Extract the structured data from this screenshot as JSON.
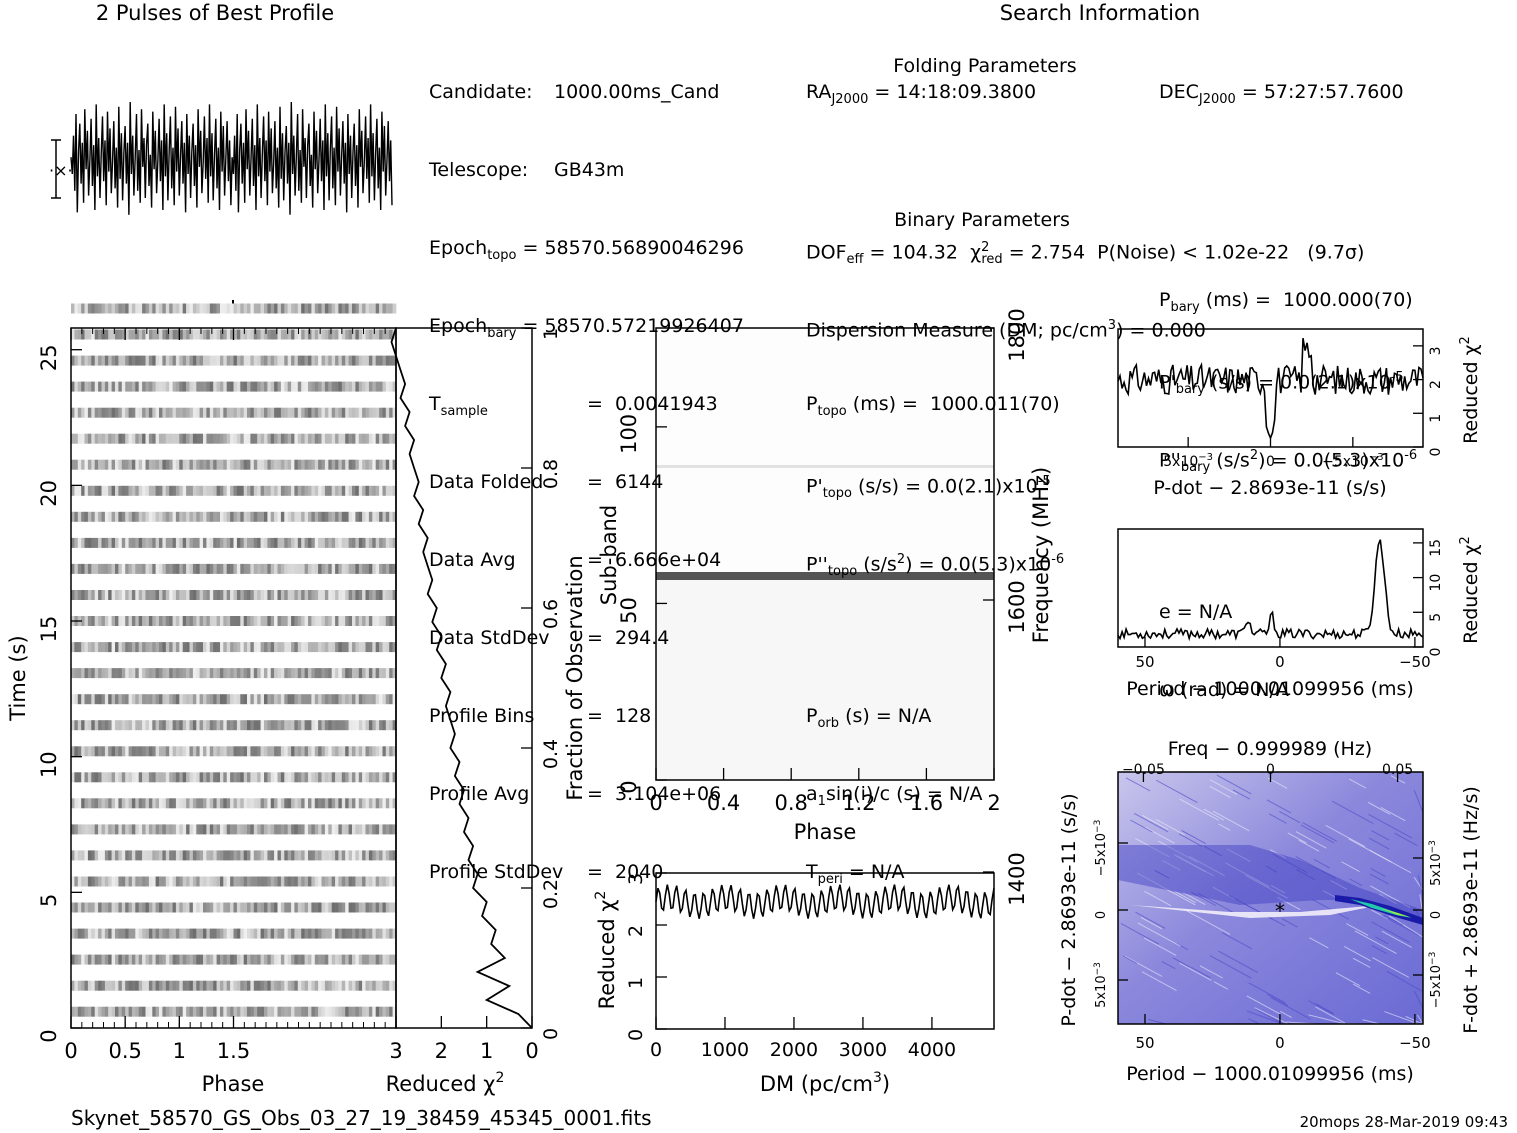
{
  "titles": {
    "profile": "2 Pulses of Best Profile",
    "search": "Search Information",
    "folding": "Folding Parameters",
    "binary": "Binary Parameters"
  },
  "info_left": [
    {
      "label": "Candidate:",
      "value": "1000.00ms_Cand"
    },
    {
      "label": "Telescope:",
      "value": "GB43m"
    },
    {
      "label": "Epoch",
      "sub": "topo",
      "value": "= 58570.5689004629 6"
    },
    {
      "label": "Epoch",
      "sub": "bary",
      "value": "= 58570.57219926407"
    },
    {
      "label": "T",
      "sub": "sample",
      "value": "=  0.0041943"
    },
    {
      "label": "Data Folded",
      "value": "=  6144"
    },
    {
      "label": "Data Avg",
      "value": "=  6.666e+04"
    },
    {
      "label": "Data StdDev",
      "value": "=  294.4"
    },
    {
      "label": "Profile Bins",
      "value": "=  128"
    },
    {
      "label": "Profile Avg",
      "value": "=  3.104e+06"
    },
    {
      "label": "Profile StdDev",
      "value": "=  2040"
    }
  ],
  "info_search": {
    "ra_label": "RA",
    "ra_sub": "J2000",
    "ra_value": "= 14:18:09.3800",
    "dec_label": "DEC",
    "dec_sub": "J2000",
    "dec_value": "= 57:27:57.7600",
    "dof_label": "DOF",
    "dof_sub": "eff",
    "dof_value": "= 104.32",
    "chi_label": "χ",
    "chi_sup": "2",
    "chi_sub": "red",
    "chi_value": "= 2.754",
    "pnoise": "P(Noise) < 1.02e-22   (9.7σ)",
    "dm": "Dispersion Measure (DM; pc/cm",
    "dm_sup": "3",
    "dm_end": ") = 0.000",
    "ptopo": "(ms) =  1000.011(70)",
    "pbary": "(ms) =  1000.000(70)",
    "pdtopo": "(s/s) = 0.0(2.1)x10",
    "pdtopo_exp": "-5",
    "pdbary": "(s/s) = 0.0(2.1)x10",
    "pdbary_exp": "-5",
    "pddtopo": "(s/s",
    "pddtopo_end": ") = 0.0(5.3)x10",
    "pddtopo_exp": "-6",
    "pddbary": "(s/s",
    "pddbary_end": ") = 0.0(5.3)x10",
    "pddbary_exp": "-6",
    "porb": "(s) = N/A",
    "e": "e = N/A",
    "asini": "sin(i)/c (s) = N/A",
    "omega": "ω (rad) = N/A",
    "tperi": "= N/A"
  },
  "axes": {
    "time_label": "Time (s)",
    "phase_label": "Phase",
    "redchi_label": "Reduced χ",
    "frac_label": "Fraction of Observation",
    "subband_label": "Sub-band",
    "freq_label": "Frequency (MHz)",
    "dm_label": "DM (pc/cm",
    "dm_label_sup": "3",
    "dm_label_end": ")",
    "pdot_label": "P-dot − 2.8693e-11 (s/s)",
    "period_label": "Period − 1000.01099956 (ms)",
    "freq_top_label": "Freq − 0.999989 (Hz)",
    "pdot_left_label": "P-dot − 2.8693e-11 (s/s)",
    "fdot_right_label": "F-dot + 2.8693e-11 (Hz/s)",
    "chi_sup": "2"
  },
  "footer": {
    "filename": "Skynet_58570_GS_Obs_03_27_19_38459_45345_0001.fits",
    "stamp": "20mops 28-Mar-2019 09:43"
  },
  "chart_data": [
    {
      "type": "line",
      "name": "profile",
      "title": "2 Pulses of Best Profile",
      "x_range": [
        0,
        2
      ],
      "bins": 128,
      "values": [
        0.52,
        0.45,
        0.61,
        0.38,
        0.7,
        0.29,
        0.55,
        0.66,
        0.41,
        0.58,
        0.33,
        0.72,
        0.47,
        0.63,
        0.36,
        0.51,
        0.68,
        0.4,
        0.57,
        0.3,
        0.74,
        0.44,
        0.6,
        0.35,
        0.53,
        0.69,
        0.42,
        0.59,
        0.32,
        0.71,
        0.46,
        0.64,
        0.37,
        0.5,
        0.67,
        0.39,
        0.56,
        0.31,
        0.73,
        0.43,
        0.62,
        0.34,
        0.54,
        0.65,
        0.41,
        0.58,
        0.28,
        0.75,
        0.45,
        0.61,
        0.36,
        0.52,
        0.7,
        0.38,
        0.55,
        0.33,
        0.72,
        0.48,
        0.6,
        0.35,
        0.57,
        0.66,
        0.4,
        0.53,
        0.31,
        0.71,
        0.47,
        0.63,
        0.37,
        0.51,
        0.68,
        0.42,
        0.59,
        0.3,
        0.74,
        0.44,
        0.62,
        0.34,
        0.55,
        0.69,
        0.39,
        0.56,
        0.32,
        0.73,
        0.46,
        0.64,
        0.36,
        0.52,
        0.67,
        0.41,
        0.58,
        0.29,
        0.7,
        0.45,
        0.61,
        0.35,
        0.54,
        0.66,
        0.4,
        0.57,
        0.31,
        0.72,
        0.48,
        0.63,
        0.37,
        0.5,
        0.69,
        0.43,
        0.6,
        0.33,
        0.74,
        0.44,
        0.62,
        0.34,
        0.53,
        0.68,
        0.39,
        0.56,
        0.3,
        0.71,
        0.46,
        0.65,
        0.36,
        0.51,
        0.67,
        0.42,
        0.59,
        0.32
      ]
    },
    {
      "type": "heatmap",
      "name": "time-phase",
      "xlabel": "Phase",
      "ylabel": "Time (s)",
      "xlim": [
        0,
        3
      ],
      "ylim": [
        0,
        25.8
      ]
    },
    {
      "type": "line",
      "name": "time-chi",
      "xlabel": "Reduced χ2",
      "ylabel": "Fraction of Observation",
      "xlim": [
        3,
        0
      ],
      "ylim": [
        0,
        1
      ],
      "frac": [
        0.0,
        0.02,
        0.04,
        0.06,
        0.08,
        0.1,
        0.12,
        0.14,
        0.16,
        0.18,
        0.2,
        0.22,
        0.24,
        0.26,
        0.28,
        0.3,
        0.32,
        0.34,
        0.36,
        0.38,
        0.4,
        0.42,
        0.44,
        0.46,
        0.48,
        0.5,
        0.52,
        0.54,
        0.56,
        0.58,
        0.6,
        0.62,
        0.64,
        0.66,
        0.68,
        0.7,
        0.72,
        0.74,
        0.76,
        0.78,
        0.8,
        0.82,
        0.84,
        0.86,
        0.88,
        0.9,
        0.92,
        0.94,
        0.96,
        0.98,
        1.0
      ],
      "chi": [
        0.0,
        0.3,
        1.0,
        0.5,
        1.2,
        0.6,
        0.9,
        0.8,
        1.1,
        1.0,
        1.3,
        1.2,
        1.4,
        1.3,
        1.5,
        1.4,
        1.6,
        1.5,
        1.7,
        1.6,
        1.8,
        1.7,
        1.8,
        1.9,
        1.8,
        2.0,
        1.9,
        2.1,
        2.0,
        2.2,
        2.1,
        2.3,
        2.2,
        2.3,
        2.4,
        2.3,
        2.5,
        2.4,
        2.6,
        2.5,
        2.6,
        2.7,
        2.6,
        2.8,
        2.7,
        2.9,
        2.8,
        2.9,
        3.0,
        3.1,
        3.0
      ]
    },
    {
      "type": "heatmap",
      "name": "subband-phase",
      "xlabel": "Phase",
      "ylabel": "Sub-band",
      "xlim": [
        0,
        2
      ],
      "ylim": [
        0,
        128
      ],
      "y2label": "Frequency (MHz)",
      "y2ticks": [
        1400,
        1600,
        1800
      ]
    },
    {
      "type": "line",
      "name": "dm-chi",
      "xlabel": "DM (pc/cm3)",
      "ylabel": "Reduced χ2",
      "xlim": [
        0,
        4900
      ],
      "ylim": [
        0,
        3
      ],
      "mean": 2.45,
      "amplitude": 0.25
    },
    {
      "type": "line",
      "name": "pdot-chi",
      "xlabel": "P-dot − 2.8693e-11 (s/s)",
      "ylabel": "Reduced χ2",
      "xlim": [
        0.009,
        -0.0085
      ],
      "ylim": [
        0,
        3.5
      ],
      "mean": 2.0
    },
    {
      "type": "line",
      "name": "period-chi",
      "xlabel": "Period − 1000.01099956 (ms)",
      "ylabel": "Reduced χ2",
      "xlim": [
        60,
        -53
      ],
      "ylim": [
        0,
        17
      ],
      "peak_x": -37,
      "peak_y": 15.5
    },
    {
      "type": "heatmap",
      "name": "p-pdot",
      "xlabel": "Period − 1000.01099956 (ms)",
      "ylabel": "P-dot − 2.8693e-11 (s/s)",
      "xlim": [
        60,
        -53
      ],
      "ylim": [
        0.009,
        -0.01
      ],
      "top_xlabel": "Freq − 0.999989 (Hz)",
      "right_ylabel": "F-dot + 2.8693e-11 (Hz/s)"
    }
  ]
}
